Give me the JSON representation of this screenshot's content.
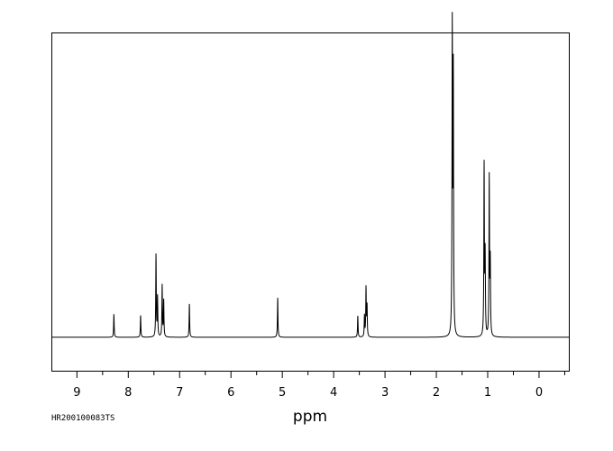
{
  "chart_data": {
    "type": "line",
    "xlabel": "ppm",
    "x_reversed": true,
    "xlim": [
      9.48,
      -0.58
    ],
    "ylim": [
      -0.11,
      1.0
    ],
    "grid": false,
    "major_ticks": [
      9,
      8,
      7,
      6,
      5,
      4,
      3,
      2,
      1,
      0
    ],
    "tick_labels": [
      "9",
      "8",
      "7",
      "6",
      "5",
      "4",
      "3",
      "2",
      "1",
      "0"
    ],
    "minor_tick_step": 0.5,
    "peaks": [
      {
        "ppm": 8.28,
        "height": 0.076
      },
      {
        "ppm": 7.76,
        "height": 0.072
      },
      {
        "ppm": 7.46,
        "height": 0.27
      },
      {
        "ppm": 7.43,
        "height": 0.13
      },
      {
        "ppm": 7.34,
        "height": 0.17
      },
      {
        "ppm": 7.31,
        "height": 0.12
      },
      {
        "ppm": 6.81,
        "height": 0.11
      },
      {
        "ppm": 5.09,
        "height": 0.13
      },
      {
        "ppm": 3.53,
        "height": 0.07
      },
      {
        "ppm": 3.4,
        "height": 0.07
      },
      {
        "ppm": 3.37,
        "height": 0.16
      },
      {
        "ppm": 3.35,
        "height": 0.1
      },
      {
        "ppm": 1.69,
        "height": 1.0
      },
      {
        "ppm": 1.67,
        "height": 0.85
      },
      {
        "ppm": 1.07,
        "height": 0.56
      },
      {
        "ppm": 1.05,
        "height": 0.26
      },
      {
        "ppm": 0.97,
        "height": 0.52
      },
      {
        "ppm": 0.95,
        "height": 0.24
      }
    ],
    "series_color": "#000000"
  },
  "sample_id": "HR200100083TS"
}
